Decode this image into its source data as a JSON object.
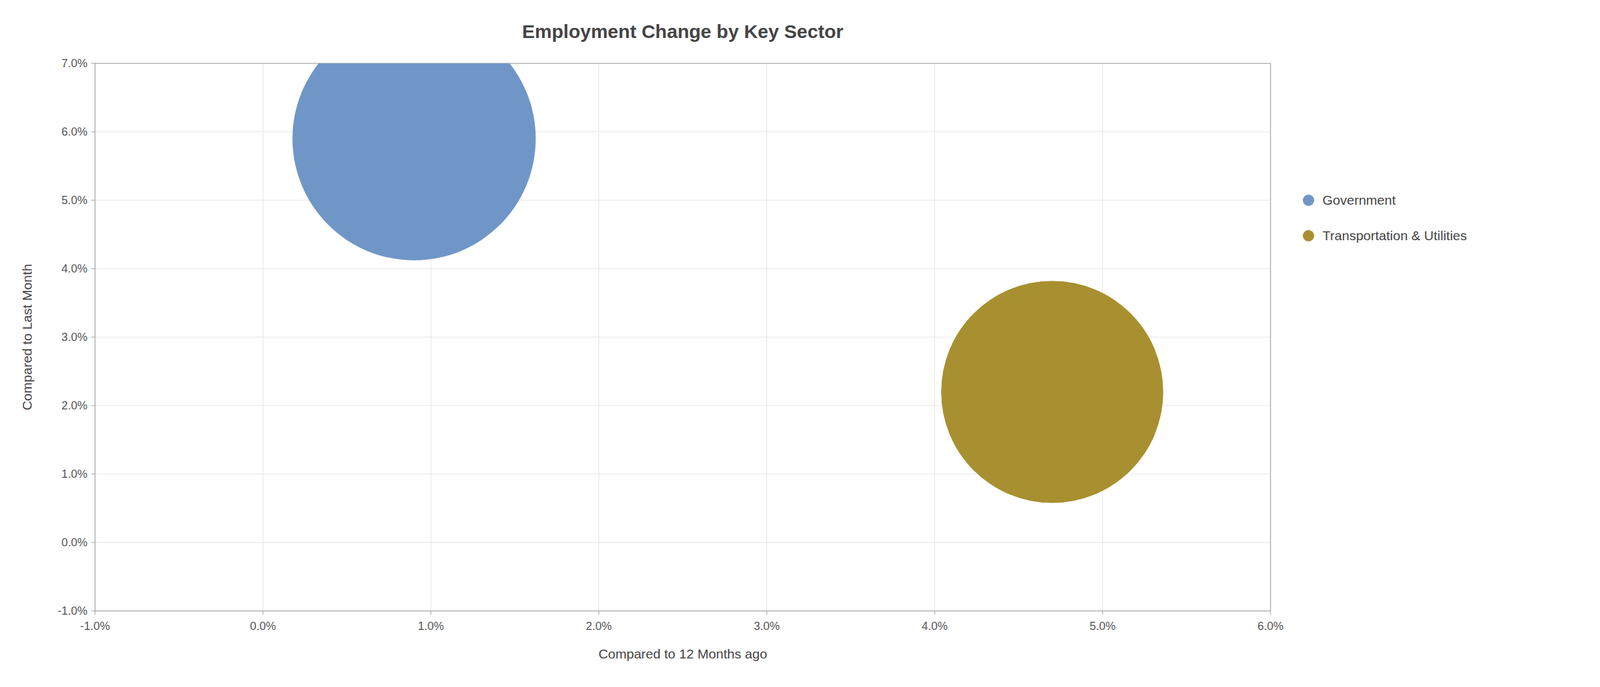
{
  "chart_data": {
    "type": "scatter",
    "title": "Employment Change by Key Sector",
    "xlabel": "Compared to 12 Months ago",
    "ylabel": "Compared to Last Month",
    "xlim": [
      -0.01,
      0.06
    ],
    "ylim": [
      -0.01,
      0.07
    ],
    "xticks": [
      {
        "value": -0.01,
        "label": "-1.0%"
      },
      {
        "value": 0.0,
        "label": "0.0%"
      },
      {
        "value": 0.01,
        "label": "1.0%"
      },
      {
        "value": 0.02,
        "label": "2.0%"
      },
      {
        "value": 0.03,
        "label": "3.0%"
      },
      {
        "value": 0.04,
        "label": "4.0%"
      },
      {
        "value": 0.05,
        "label": "5.0%"
      },
      {
        "value": 0.06,
        "label": "6.0%"
      }
    ],
    "yticks": [
      {
        "value": -0.01,
        "label": "-1.0%"
      },
      {
        "value": 0.0,
        "label": "0.0%"
      },
      {
        "value": 0.01,
        "label": "1.0%"
      },
      {
        "value": 0.02,
        "label": "2.0%"
      },
      {
        "value": 0.03,
        "label": "3.0%"
      },
      {
        "value": 0.04,
        "label": "4.0%"
      },
      {
        "value": 0.05,
        "label": "5.0%"
      },
      {
        "value": 0.06,
        "label": "6.0%"
      },
      {
        "value": 0.07,
        "label": "7.0%"
      }
    ],
    "series": [
      {
        "name": "Government",
        "x": [
          0.009
        ],
        "values": [
          0.059
        ],
        "size": [
          60000
        ],
        "color": "#7096c8"
      },
      {
        "name": "Transportation & Utilities",
        "x": [
          0.047
        ],
        "values": [
          0.022
        ],
        "size": [
          50000
        ],
        "color": "#a89030"
      }
    ],
    "grid": true,
    "legend": "right"
  }
}
